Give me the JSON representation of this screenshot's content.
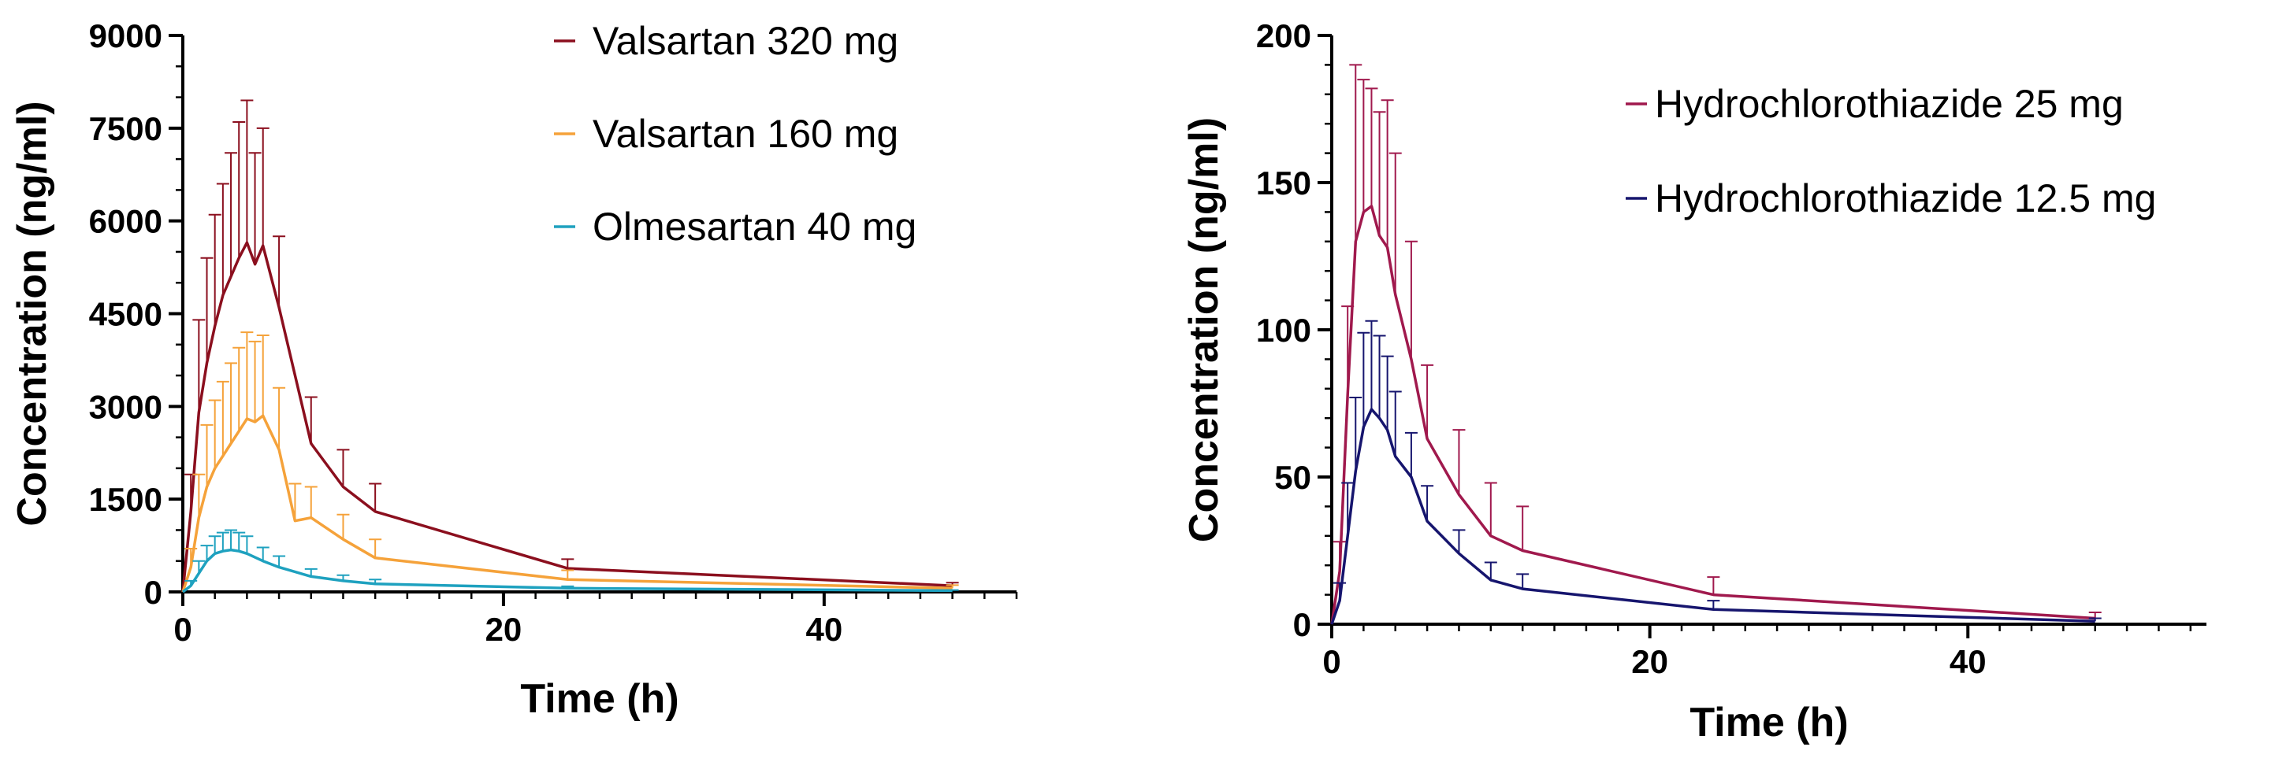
{
  "chart_data": [
    {
      "type": "line",
      "title": "",
      "xlabel": "Time (h)",
      "ylabel": "Concentration (ng/ml)",
      "xlim": [
        0,
        52
      ],
      "ylim": [
        0,
        9000
      ],
      "x_ticks": [
        "0",
        "20",
        "40"
      ],
      "y_ticks": [
        "0",
        "1500",
        "3000",
        "4500",
        "6000",
        "7500",
        "9000"
      ],
      "x_tick_values": [
        0,
        20,
        40
      ],
      "y_tick_values": [
        0,
        1500,
        3000,
        4500,
        6000,
        7500,
        9000
      ],
      "x_minor_step": 2,
      "y_minor_step": 500,
      "legend_position": "top-right",
      "series": [
        {
          "name": "Valsartan 320 mg",
          "color": "#8b0f1e",
          "x": [
            0,
            0.5,
            1,
            1.5,
            2,
            2.5,
            3,
            3.5,
            4,
            4.5,
            5,
            6,
            8,
            10,
            12,
            24,
            48
          ],
          "y": [
            0,
            1300,
            2900,
            3700,
            4300,
            4800,
            5100,
            5400,
            5650,
            5300,
            5600,
            4600,
            2400,
            1700,
            1300,
            380,
            100
          ],
          "err": [
            0,
            600,
            1500,
            1700,
            1800,
            1800,
            2000,
            2200,
            2300,
            1800,
            1900,
            1150,
            750,
            600,
            450,
            150,
            50
          ]
        },
        {
          "name": "Valsartan 160 mg",
          "color": "#f5a23a",
          "x": [
            0,
            0.5,
            1,
            1.5,
            2,
            2.5,
            3,
            3.5,
            4,
            4.5,
            5,
            6,
            7,
            8,
            10,
            12,
            24,
            48
          ],
          "y": [
            0,
            400,
            1200,
            1700,
            2000,
            2200,
            2400,
            2600,
            2800,
            2750,
            2850,
            2300,
            1150,
            1200,
            850,
            550,
            200,
            60
          ],
          "err": [
            0,
            300,
            700,
            1000,
            1100,
            1200,
            1300,
            1350,
            1400,
            1300,
            1300,
            1000,
            600,
            500,
            400,
            300,
            150,
            50
          ]
        },
        {
          "name": "Olmesartan 40 mg",
          "color": "#1ea1bf",
          "x": [
            0,
            0.5,
            1,
            1.5,
            2,
            2.5,
            3,
            3.5,
            4,
            5,
            6,
            8,
            10,
            12,
            24,
            48
          ],
          "y": [
            0,
            100,
            300,
            500,
            620,
            660,
            680,
            660,
            620,
            500,
            400,
            250,
            180,
            130,
            60,
            20
          ],
          "err": [
            0,
            80,
            200,
            250,
            280,
            300,
            320,
            300,
            280,
            220,
            180,
            120,
            90,
            70,
            30,
            10
          ]
        }
      ]
    },
    {
      "type": "line",
      "title": "",
      "xlabel": "Time (h)",
      "ylabel": "Concentration (ng/ml)",
      "xlim": [
        0,
        55
      ],
      "ylim": [
        0,
        200
      ],
      "x_ticks": [
        "0",
        "20",
        "40"
      ],
      "y_ticks": [
        "0",
        "50",
        "100",
        "150",
        "200"
      ],
      "x_tick_values": [
        0,
        20,
        40
      ],
      "y_tick_values": [
        0,
        50,
        100,
        150,
        200
      ],
      "x_minor_step": 2,
      "y_minor_step": 10,
      "legend_position": "top-right",
      "series": [
        {
          "name": "Hydrochlorothiazide 25 mg",
          "color": "#a0194d",
          "x": [
            0,
            0.5,
            1,
            1.5,
            2,
            2.5,
            3,
            3.5,
            4,
            5,
            6,
            8,
            10,
            12,
            24,
            48
          ],
          "y": [
            0,
            18,
            78,
            130,
            140,
            142,
            132,
            128,
            112,
            90,
            63,
            44,
            30,
            25,
            10,
            2
          ],
          "err": [
            0,
            10,
            30,
            60,
            45,
            40,
            42,
            50,
            48,
            40,
            25,
            22,
            18,
            15,
            6,
            2
          ]
        },
        {
          "name": "Hydrochlorothiazide 12.5 mg",
          "color": "#16156e",
          "x": [
            0,
            0.5,
            1,
            1.5,
            2,
            2.5,
            3,
            3.5,
            4,
            5,
            6,
            8,
            10,
            12,
            24,
            48
          ],
          "y": [
            0,
            8,
            30,
            52,
            67,
            73,
            70,
            66,
            57,
            50,
            35,
            24,
            15,
            12,
            5,
            1
          ],
          "err": [
            0,
            6,
            18,
            25,
            32,
            30,
            28,
            25,
            22,
            15,
            12,
            8,
            6,
            5,
            3,
            1
          ]
        }
      ]
    }
  ]
}
